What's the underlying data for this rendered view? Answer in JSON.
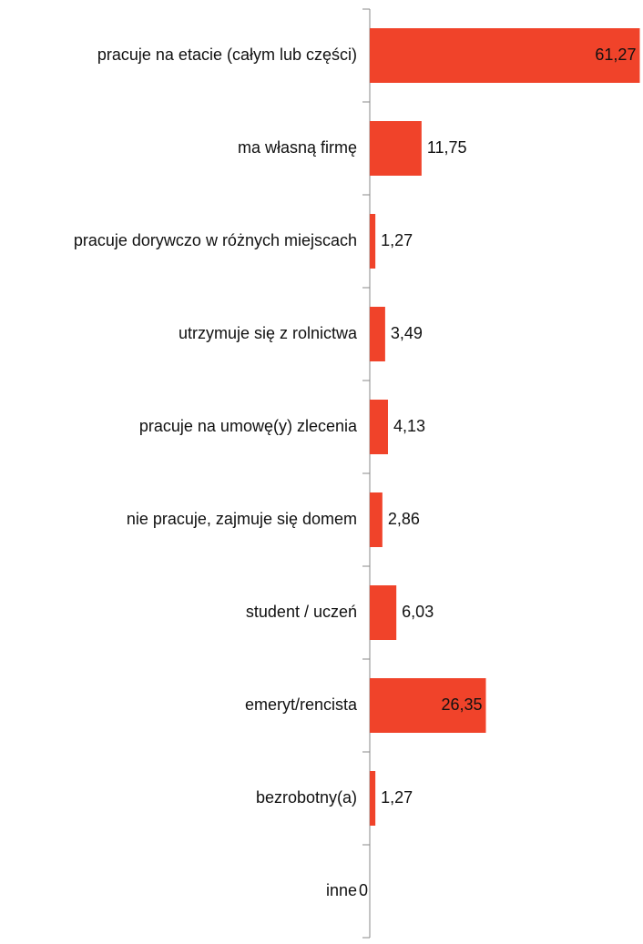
{
  "chart_data": {
    "type": "bar",
    "orientation": "horizontal",
    "categories": [
      "pracuje na etacie (całym lub części)",
      "ma własną firmę",
      "pracuje dorywczo w różnych miejscach",
      "utrzymuje się z rolnictwa",
      "pracuje na umowę(y) zlecenia",
      "nie pracuje, zajmuje się domem",
      "student / uczeń",
      "emeryt/rencista",
      "bezrobotny(a)",
      "inne"
    ],
    "values": [
      61.27,
      11.75,
      1.27,
      3.49,
      4.13,
      2.86,
      6.03,
      26.35,
      1.27,
      0
    ],
    "value_labels": [
      "61,27",
      "11,75",
      "1,27",
      "3,49",
      "4,13",
      "2,86",
      "6,03",
      "26,35",
      "1,27",
      "0"
    ],
    "color": "#f0432a",
    "xlim": [
      0,
      62
    ]
  }
}
